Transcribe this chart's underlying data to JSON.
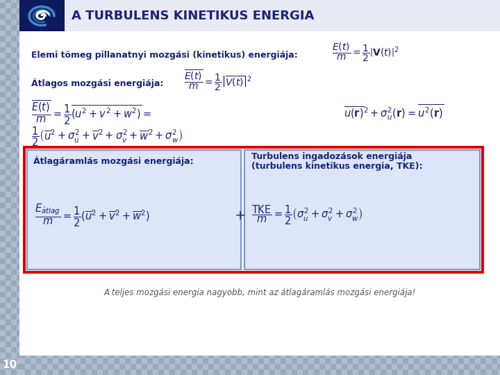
{
  "title": "A TURBULENS KINETIKUS ENERGIA",
  "title_color": "#1a237e",
  "title_fontsize": 13,
  "bg_color": "#c8ccd8",
  "text_color": "#1a237e",
  "line1_label": "Elemi tömeg pillanatnyi mozgási (kinetikus) energiája:",
  "line2_label": "Átlagos mozgási energiája:",
  "box_label1": "Átlagáramlás mozgási energiája:",
  "box_label2": "Turbulens ingadozások energiája\n(turbulens kinetikus energia, TKE):",
  "footer": "A teljes mozgási energia nagyobb, mint az átlagáramlás mozgási energiája!",
  "footer_color": "#555555",
  "page_num": "10",
  "logo_bg": "#0d1b5e",
  "header_bg": "#ffffff",
  "body_bg": "#ffffff",
  "left_strip_color": "#a0aabe",
  "bottom_strip_color": "#a0aabe"
}
